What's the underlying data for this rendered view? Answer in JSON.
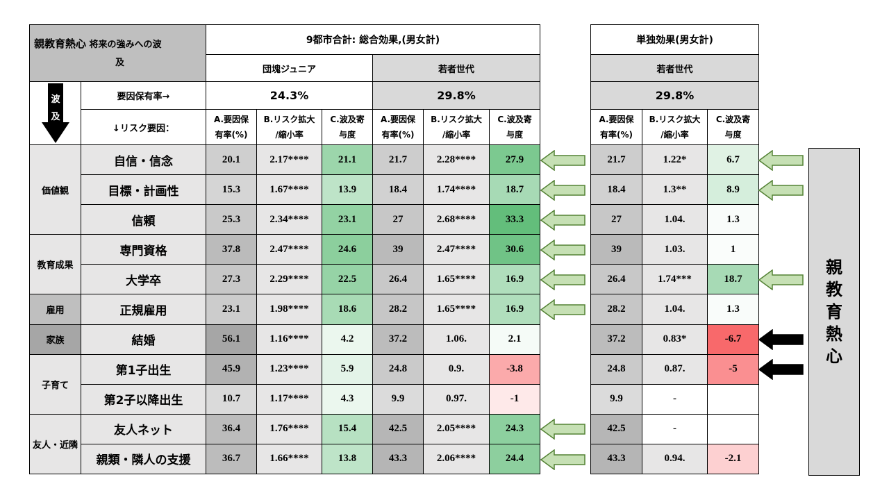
{
  "corner": {
    "line1_big": "親教育熱心",
    "line1_small": " 将来の強みへの波",
    "line2": "及"
  },
  "left": {
    "title": "9都市合計: 総合効果,(男女計)",
    "groups": [
      {
        "name": "団塊ジュニア",
        "rate": "24.3%"
      },
      {
        "name": "若者世代",
        "rate": "29.8%"
      }
    ]
  },
  "right": {
    "title": "単独効果(男女計)",
    "group": "若者世代",
    "rate": "29.8%"
  },
  "ripple": {
    "char1": "波",
    "char2": "及"
  },
  "labels": {
    "rate_row": "要因保有率→",
    "risk_row": "↓リスク要因："
  },
  "col_headers": {
    "a1": "A.要因保",
    "a2": "有率(%)",
    "b1": "B.リスク拡大",
    "b2": "/縮小率",
    "c1": "C.波及寄",
    "c2": "与度"
  },
  "categories": [
    {
      "name": "価値観"
    },
    {
      "name": "教育成果"
    },
    {
      "name": "雇用"
    },
    {
      "name": "家族"
    },
    {
      "name": "子育て"
    },
    {
      "name": "友人・近隣"
    }
  ],
  "rows": [
    {
      "factor": "自信・信念",
      "dj": [
        "20.1",
        "2.17****",
        "21.1"
      ],
      "wk": [
        "21.7",
        "2.28****",
        "27.9"
      ],
      "solo": [
        "21.7",
        "1.22*",
        "6.7"
      ],
      "arrow_mid": "green",
      "arrow_right": "green"
    },
    {
      "factor": "目標・計画性",
      "dj": [
        "15.3",
        "1.67****",
        "13.9"
      ],
      "wk": [
        "18.4",
        "1.74****",
        "18.7"
      ],
      "solo": [
        "18.4",
        "1.3**",
        "8.9"
      ],
      "arrow_mid": "green",
      "arrow_right": "green"
    },
    {
      "factor": "信頼",
      "dj": [
        "25.3",
        "2.34****",
        "23.1"
      ],
      "wk": [
        "27",
        "2.68****",
        "33.3"
      ],
      "solo": [
        "27",
        "1.04.",
        "1.3"
      ],
      "arrow_mid": "green",
      "arrow_right": ""
    },
    {
      "factor": "専門資格",
      "dj": [
        "37.8",
        "2.47****",
        "24.6"
      ],
      "wk": [
        "39",
        "2.47****",
        "30.6"
      ],
      "solo": [
        "39",
        "1.03.",
        "1"
      ],
      "arrow_mid": "green",
      "arrow_right": ""
    },
    {
      "factor": "大学卒",
      "dj": [
        "27.3",
        "2.29****",
        "22.5"
      ],
      "wk": [
        "26.4",
        "1.65****",
        "16.9"
      ],
      "solo": [
        "26.4",
        "1.74***",
        "18.7"
      ],
      "arrow_mid": "green",
      "arrow_right": "green"
    },
    {
      "factor": "正規雇用",
      "dj": [
        "23.1",
        "1.98****",
        "18.6"
      ],
      "wk": [
        "28.2",
        "1.65****",
        "16.9"
      ],
      "solo": [
        "28.2",
        "1.04.",
        "1.3"
      ],
      "arrow_mid": "green",
      "arrow_right": ""
    },
    {
      "factor": "結婚",
      "dj": [
        "56.1",
        "1.16****",
        "4.2"
      ],
      "wk": [
        "37.2",
        "1.06.",
        "2.1"
      ],
      "solo": [
        "37.2",
        "0.83*",
        "-6.7"
      ],
      "arrow_mid": "",
      "arrow_right": "black"
    },
    {
      "factor": "第1子出生",
      "dj": [
        "45.9",
        "1.23****",
        "5.9"
      ],
      "wk": [
        "24.8",
        "0.9.",
        "-3.8"
      ],
      "solo": [
        "24.8",
        "0.87.",
        "-5"
      ],
      "arrow_mid": "",
      "arrow_right": "black"
    },
    {
      "factor": "第2子以降出生",
      "dj": [
        "10.7",
        "1.17****",
        "4.3"
      ],
      "wk": [
        "9.9",
        "0.97.",
        "-1"
      ],
      "solo": [
        "9.9",
        "-",
        ""
      ],
      "arrow_mid": "",
      "arrow_right": ""
    },
    {
      "factor": "友人ネット",
      "dj": [
        "36.4",
        "1.76****",
        "15.4"
      ],
      "wk": [
        "42.5",
        "2.05****",
        "24.3"
      ],
      "solo": [
        "42.5",
        "-",
        ""
      ],
      "arrow_mid": "green",
      "arrow_right": ""
    },
    {
      "factor": "親類・隣人の支援",
      "dj": [
        "36.7",
        "1.66****",
        "13.8"
      ],
      "wk": [
        "43.3",
        "2.06****",
        "24.4"
      ],
      "solo": [
        "43.3",
        "0.94.",
        "-2.1"
      ],
      "arrow_mid": "green",
      "arrow_right": ""
    }
  ],
  "side_label": "親教育熱心",
  "colors": {
    "green_arrow_fill": "#c6e0b4",
    "green_arrow_stroke": "#548235",
    "black_arrow": "#000000",
    "positive_max": "#63be7b",
    "negative_max": "#f8696b"
  }
}
